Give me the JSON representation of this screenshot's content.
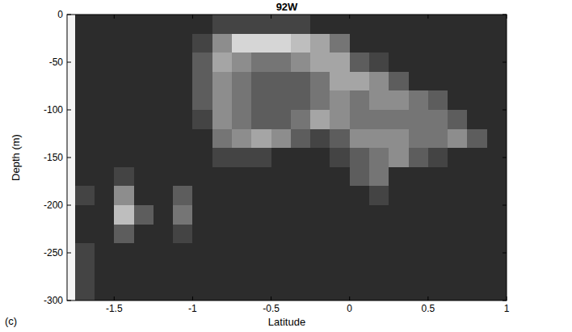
{
  "chart_data": {
    "type": "heatmap",
    "title": "92W",
    "x_label": "Latitude",
    "y_label": "Depth (m)",
    "panel_label": "(c)",
    "x_edges": [
      -1.75,
      -1.625,
      -1.5,
      -1.375,
      -1.25,
      -1.125,
      -1,
      -0.875,
      -0.75,
      -0.625,
      -0.5,
      -0.375,
      -0.25,
      -0.125,
      0,
      0.125,
      0.25,
      0.375,
      0.5,
      0.625,
      0.75,
      0.875,
      1
    ],
    "y_edges": [
      0,
      -20,
      -40,
      -60,
      -80,
      -100,
      -120,
      -140,
      -160,
      -180,
      -200,
      -220,
      -240,
      -260,
      -280,
      -300
    ],
    "z": [
      [
        1,
        1,
        1,
        1,
        1,
        1,
        1,
        2,
        2,
        2,
        2,
        2,
        1,
        1,
        1,
        1,
        1,
        1,
        1,
        1,
        1,
        1
      ],
      [
        1,
        1,
        1,
        1,
        1,
        1,
        2,
        5,
        8,
        8,
        8,
        7,
        6,
        4,
        1,
        1,
        1,
        1,
        1,
        1,
        1,
        1
      ],
      [
        1,
        1,
        1,
        1,
        1,
        1,
        3,
        6,
        5,
        4,
        4,
        5,
        6,
        6,
        3,
        2,
        1,
        1,
        1,
        1,
        1,
        1
      ],
      [
        1,
        1,
        1,
        1,
        1,
        1,
        3,
        5,
        4,
        3,
        3,
        3,
        4,
        6,
        6,
        5,
        3,
        1,
        1,
        1,
        1,
        1
      ],
      [
        1,
        1,
        1,
        1,
        1,
        1,
        3,
        5,
        4,
        3,
        3,
        3,
        4,
        5,
        4,
        5,
        5,
        4,
        3,
        1,
        1,
        1
      ],
      [
        1,
        1,
        1,
        1,
        1,
        1,
        2,
        5,
        4,
        3,
        3,
        4,
        6,
        5,
        4,
        4,
        4,
        4,
        4,
        3,
        1,
        1
      ],
      [
        1,
        1,
        1,
        1,
        1,
        1,
        1,
        4,
        5,
        6,
        5,
        3,
        2,
        3,
        5,
        5,
        5,
        4,
        4,
        5,
        3,
        1
      ],
      [
        1,
        1,
        1,
        1,
        1,
        1,
        1,
        2,
        2,
        2,
        1,
        1,
        1,
        2,
        3,
        4,
        5,
        3,
        2,
        1,
        1,
        1
      ],
      [
        1,
        1,
        2,
        1,
        1,
        1,
        1,
        1,
        1,
        1,
        1,
        1,
        1,
        1,
        3,
        4,
        1,
        1,
        1,
        1,
        1,
        1
      ],
      [
        2,
        1,
        5,
        1,
        1,
        3,
        1,
        1,
        1,
        1,
        1,
        1,
        1,
        1,
        1,
        2,
        1,
        1,
        1,
        1,
        1,
        1
      ],
      [
        1,
        1,
        7,
        3,
        1,
        4,
        1,
        1,
        1,
        1,
        1,
        1,
        1,
        1,
        1,
        1,
        1,
        1,
        1,
        1,
        1,
        1
      ],
      [
        1,
        1,
        3,
        1,
        1,
        2,
        1,
        1,
        1,
        1,
        1,
        1,
        1,
        1,
        1,
        1,
        1,
        1,
        1,
        1,
        1,
        1
      ],
      [
        2,
        1,
        1,
        1,
        1,
        1,
        1,
        1,
        1,
        1,
        1,
        1,
        1,
        1,
        1,
        1,
        1,
        1,
        1,
        1,
        1,
        1
      ],
      [
        2,
        1,
        1,
        1,
        1,
        1,
        1,
        1,
        1,
        1,
        1,
        1,
        1,
        1,
        1,
        1,
        1,
        1,
        1,
        1,
        1,
        1
      ],
      [
        2,
        1,
        1,
        1,
        1,
        1,
        1,
        1,
        1,
        1,
        1,
        1,
        1,
        1,
        1,
        1,
        1,
        1,
        1,
        1,
        1,
        1
      ]
    ],
    "zlim": [
      0,
      9
    ],
    "color": "gray",
    "xlim": [
      -1.8,
      1
    ],
    "ylim": [
      -300,
      0
    ],
    "xticks": [
      -1.5,
      -1,
      -0.5,
      0,
      0.5,
      1
    ],
    "yticks": [
      0,
      -50,
      -100,
      -150,
      -200,
      -250,
      -300
    ],
    "grid": false
  }
}
